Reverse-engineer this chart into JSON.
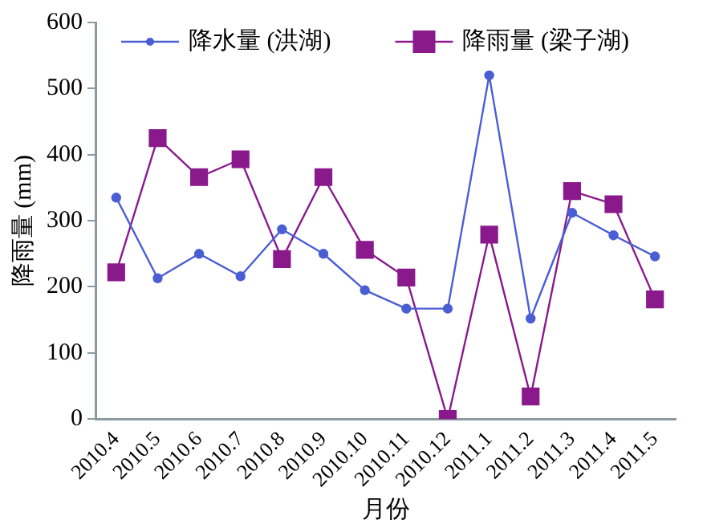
{
  "chart_data": {
    "type": "line",
    "xlabel": "月份",
    "ylabel": "降雨量 (mm)",
    "categories": [
      "2010.4",
      "2010.5",
      "2010.6",
      "2010.7",
      "2010.8",
      "2010.9",
      "2010.10",
      "2010.11",
      "2010.12",
      "2011.1",
      "2011.2",
      "2011.3",
      "2011.4",
      "2011.5"
    ],
    "series": [
      {
        "name": "降水量 (洪湖)",
        "color": "#4a5ed4",
        "marker": "circle",
        "values": [
          335,
          213,
          250,
          216,
          287,
          250,
          195,
          167,
          167,
          520,
          152,
          312,
          278,
          246
        ]
      },
      {
        "name": "降雨量 (梁子湖)",
        "color": "#8a1a8c",
        "marker": "square",
        "values": [
          222,
          425,
          366,
          393,
          242,
          366,
          256,
          214,
          0,
          279,
          34,
          345,
          325,
          181
        ]
      }
    ],
    "ylim": [
      0,
      600
    ],
    "yticks": [
      0,
      100,
      200,
      300,
      400,
      500,
      600
    ],
    "grid": false,
    "legend": "top"
  }
}
